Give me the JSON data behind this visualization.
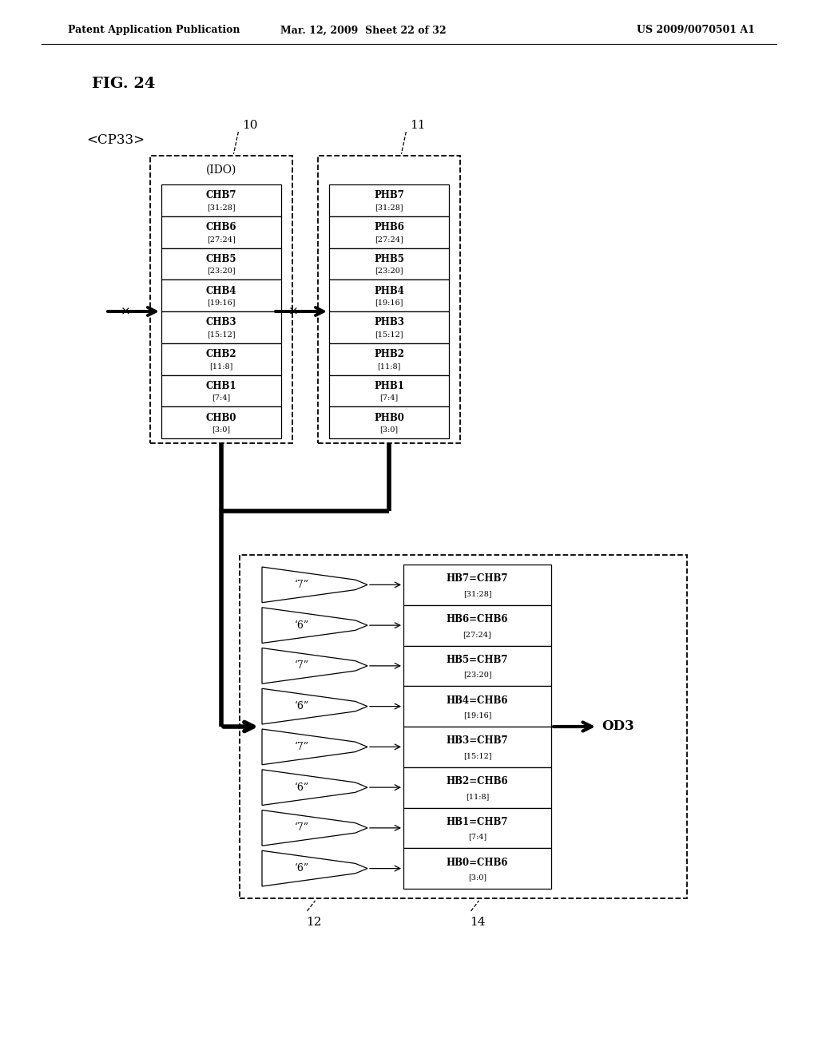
{
  "header_left": "Patent Application Publication",
  "header_mid": "Mar. 12, 2009  Sheet 22 of 32",
  "header_right": "US 2009/0070501 A1",
  "fig_label": "FIG. 24",
  "cp_label": "<CP33>",
  "box10_label": "10",
  "box11_label": "11",
  "box12_label": "12",
  "box14_label": "14",
  "ido_label": "(IDO)",
  "od3_label": "OD3",
  "chb_entries": [
    [
      "CHB7",
      "[31:28]"
    ],
    [
      "CHB6",
      "[27:24]"
    ],
    [
      "CHB5",
      "[23:20]"
    ],
    [
      "CHB4",
      "[19:16]"
    ],
    [
      "CHB3",
      "[15:12]"
    ],
    [
      "CHB2",
      "[11:8]"
    ],
    [
      "CHB1",
      "[7:4]"
    ],
    [
      "CHB0",
      "[3:0]"
    ]
  ],
  "phb_entries": [
    [
      "PHB7",
      "[31:28]"
    ],
    [
      "PHB6",
      "[27:24]"
    ],
    [
      "PHB5",
      "[23:20]"
    ],
    [
      "PHB4",
      "[19:16]"
    ],
    [
      "PHB3",
      "[15:12]"
    ],
    [
      "PHB2",
      "[11:8]"
    ],
    [
      "PHB1",
      "[7:4]"
    ],
    [
      "PHB0",
      "[3:0]"
    ]
  ],
  "mux_labels": [
    "‘7”",
    "‘6”",
    "‘7”",
    "‘6”",
    "‘7”",
    "‘6”",
    "‘7”",
    "‘6”"
  ],
  "hb_entries": [
    [
      "HB7=CHB7",
      "[31:28]"
    ],
    [
      "HB6=CHB6",
      "[27:24]"
    ],
    [
      "HB5=CHB7",
      "[23:20]"
    ],
    [
      "HB4=CHB6",
      "[19:16]"
    ],
    [
      "HB3=CHB7",
      "[15:12]"
    ],
    [
      "HB2=CHB6",
      "[11:8]"
    ],
    [
      "HB1=CHB7",
      "[7:4]"
    ],
    [
      "HB0=CHB6",
      "[3:0]"
    ]
  ],
  "bg_color": "#ffffff"
}
